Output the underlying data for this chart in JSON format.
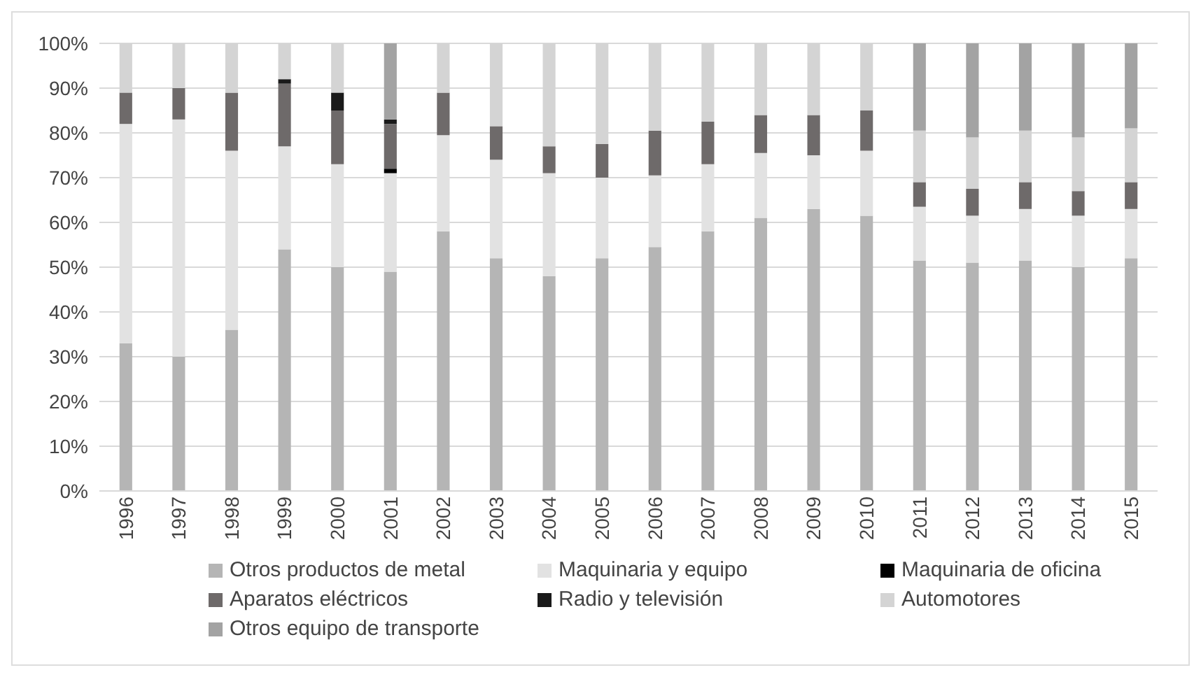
{
  "chart_data": {
    "type": "bar",
    "stacked": true,
    "categories": [
      "1996",
      "1997",
      "1998",
      "1999",
      "2000",
      "2001",
      "2002",
      "2003",
      "2004",
      "2005",
      "2006",
      "2007",
      "2008",
      "2009",
      "2010",
      "2011",
      "2012",
      "2013",
      "2014",
      "2015"
    ],
    "series": [
      {
        "name": "Otros productos de metal",
        "color": "#b5b5b5",
        "values": [
          33,
          30,
          36,
          54,
          50,
          49,
          58,
          52,
          48,
          52,
          54.5,
          58,
          61,
          63,
          61.5,
          51.5,
          51,
          51.5,
          50,
          52
        ]
      },
      {
        "name": "Maquinaria y equipo",
        "color": "#e2e2e2",
        "values": [
          49,
          53,
          40,
          23,
          23,
          22,
          21.5,
          22,
          23,
          18,
          16,
          15,
          14.5,
          12,
          14.5,
          12,
          10.5,
          11.5,
          11.5,
          11
        ]
      },
      {
        "name": "Maquinaria de oficina",
        "color": "#000000",
        "values": [
          null,
          null,
          null,
          null,
          null,
          1,
          null,
          null,
          null,
          null,
          null,
          null,
          null,
          null,
          null,
          null,
          null,
          null,
          null,
          null
        ]
      },
      {
        "name": "Aparatos eléctricos",
        "color": "#6e6a6a",
        "values": [
          7,
          7,
          13,
          14,
          12,
          10,
          9.5,
          7.5,
          6,
          7.5,
          10,
          9.5,
          8.5,
          9,
          9,
          5.5,
          6,
          6,
          5.5,
          6
        ]
      },
      {
        "name": "Radio y televisión",
        "color": "#1a1a1a",
        "values": [
          null,
          null,
          null,
          1,
          4,
          1,
          null,
          null,
          null,
          null,
          null,
          null,
          null,
          null,
          null,
          null,
          null,
          null,
          null,
          null
        ]
      },
      {
        "name": "Automotores",
        "color": "#d4d4d4",
        "values": [
          11,
          10,
          11,
          8,
          11,
          null,
          11,
          18.5,
          23,
          22.5,
          19.5,
          17.5,
          16,
          16,
          15,
          11.5,
          11.5,
          11.5,
          12,
          12
        ]
      },
      {
        "name": "Otros equipo de transporte",
        "color": "#a3a3a3",
        "values": [
          null,
          null,
          null,
          null,
          null,
          17,
          null,
          null,
          null,
          null,
          null,
          null,
          null,
          null,
          null,
          19.5,
          21,
          19.5,
          21,
          19
        ]
      }
    ],
    "ylim": [
      0,
      100
    ],
    "yticks": [
      {
        "value": 0,
        "label": "0%"
      },
      {
        "value": 10,
        "label": "10%"
      },
      {
        "value": 20,
        "label": "20%"
      },
      {
        "value": 30,
        "label": "30%"
      },
      {
        "value": 40,
        "label": "40%"
      },
      {
        "value": 50,
        "label": "50%"
      },
      {
        "value": 60,
        "label": "60%"
      },
      {
        "value": 70,
        "label": "70%"
      },
      {
        "value": 80,
        "label": "80%"
      },
      {
        "value": 90,
        "label": "90%"
      },
      {
        "value": 100,
        "label": "100%"
      }
    ],
    "grid": "y",
    "legend": "bottom"
  }
}
